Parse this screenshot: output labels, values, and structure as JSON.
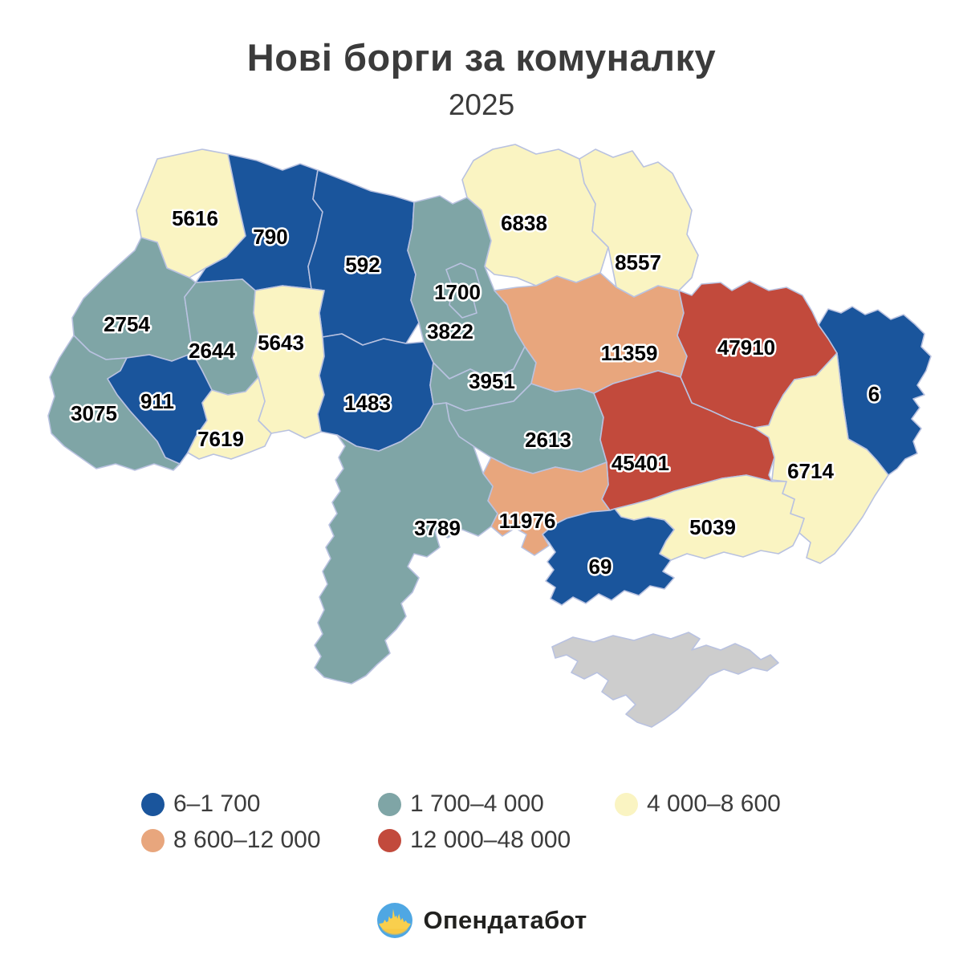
{
  "title": "Нові борги за комуналку",
  "subtitle": "2025",
  "legend": [
    {
      "label": "6–1 700",
      "color": "#1a559c"
    },
    {
      "label": "1 700–4 000",
      "color": "#7fa5a6"
    },
    {
      "label": "4 000–8 600",
      "color": "#faf4c2"
    },
    {
      "label": "8 600–12 000",
      "color": "#e8a67d"
    },
    {
      "label": "12 000–48 000",
      "color": "#c24a3c"
    }
  ],
  "footer": {
    "brand": "Опендатабот"
  },
  "chart_data": {
    "type": "choropleth_map",
    "area": "Ukraine oblasts",
    "title": "Нові борги за комуналку",
    "year": "2025",
    "no_data_color": "#cdcdcd",
    "border_color": "#b9c2e0",
    "regions": [
      {
        "id": "volyn",
        "value": 5616,
        "bucket": 2
      },
      {
        "id": "rivne",
        "value": 790,
        "bucket": 0
      },
      {
        "id": "zhytomyr",
        "value": 592,
        "bucket": 0
      },
      {
        "id": "kyiv-oblast",
        "value": 3822,
        "bucket": 1
      },
      {
        "id": "chernihiv",
        "value": 6838,
        "bucket": 2
      },
      {
        "id": "sumy",
        "value": 8557,
        "bucket": 2
      },
      {
        "id": "lviv",
        "value": 2754,
        "bucket": 1
      },
      {
        "id": "ternopil",
        "value": 2644,
        "bucket": 1
      },
      {
        "id": "khmelnytskyi",
        "value": 5643,
        "bucket": 2
      },
      {
        "id": "zakarpattia",
        "value": 3075,
        "bucket": 1
      },
      {
        "id": "ivano-frankivsk",
        "value": 911,
        "bucket": 0
      },
      {
        "id": "chernivtsi",
        "value": 7619,
        "bucket": 2
      },
      {
        "id": "vinnytsia",
        "value": 1483,
        "bucket": 0
      },
      {
        "id": "cherkasy",
        "value": 3951,
        "bucket": 1
      },
      {
        "id": "kirovohrad",
        "value": 2613,
        "bucket": 1
      },
      {
        "id": "poltava",
        "value": 11359,
        "bucket": 3
      },
      {
        "id": "kharkiv",
        "value": 47910,
        "bucket": 4
      },
      {
        "id": "luhansk",
        "value": 6,
        "bucket": 0
      },
      {
        "id": "dnipro",
        "value": 45401,
        "bucket": 4
      },
      {
        "id": "donetsk",
        "value": 6714,
        "bucket": 2
      },
      {
        "id": "zaporizhzhia",
        "value": 5039,
        "bucket": 2
      },
      {
        "id": "mykolaiv",
        "value": 11976,
        "bucket": 3
      },
      {
        "id": "kherson",
        "value": 69,
        "bucket": 0
      },
      {
        "id": "odesa",
        "value": 3789,
        "bucket": 1
      },
      {
        "id": "kyiv-city",
        "value": 1700,
        "bucket": 1
      },
      {
        "id": "crimea",
        "value": null,
        "bucket": null
      }
    ]
  }
}
